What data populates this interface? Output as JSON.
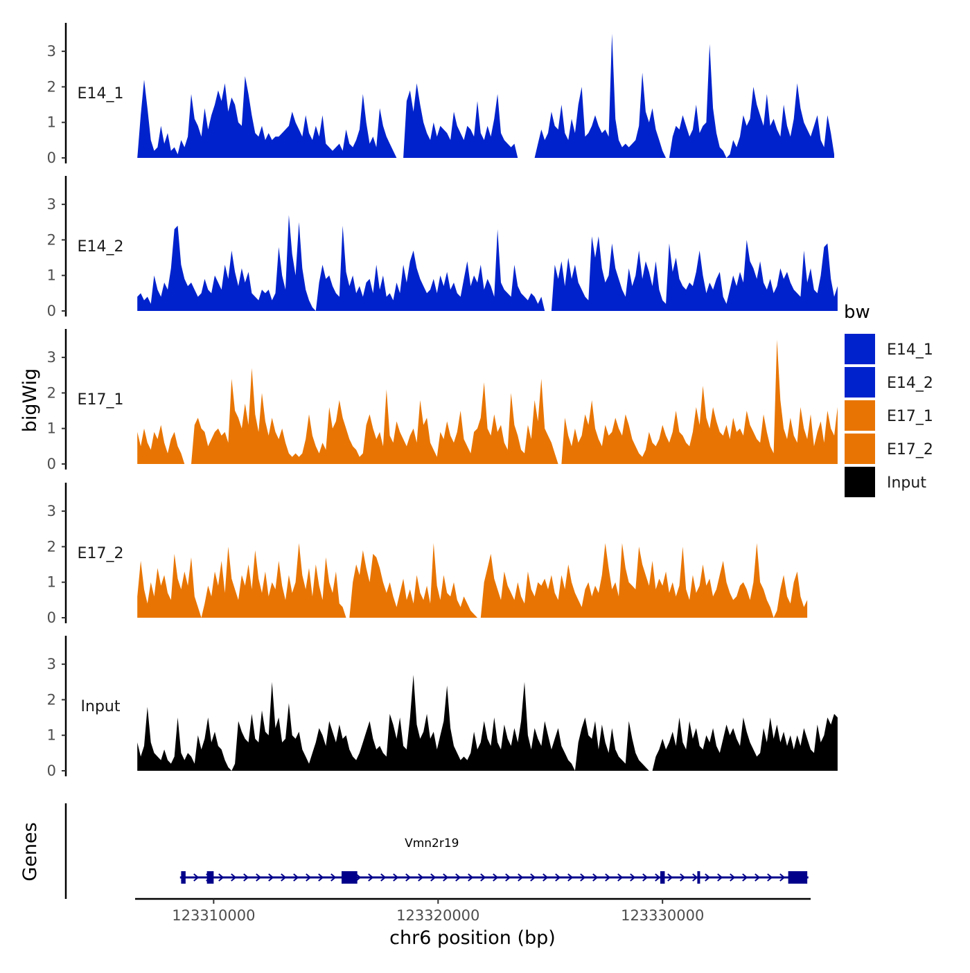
{
  "chart_data": {
    "type": "area",
    "ylabel": "bigWig",
    "xlabel": "chr6 position (bp)",
    "genes_track_label": "Genes",
    "chromosome": "chr6",
    "xlim": [
      123306500,
      123336600
    ],
    "x_ticks": [
      {
        "value": 123310000,
        "label": "123310000"
      },
      {
        "value": 123320000,
        "label": "123320000"
      },
      {
        "value": 123330000,
        "label": "123330000"
      }
    ],
    "ylim": [
      0,
      3.8
    ],
    "y_ticks": [
      {
        "value": 0,
        "label": "0"
      },
      {
        "value": 1,
        "label": "1"
      },
      {
        "value": 2,
        "label": "2"
      },
      {
        "value": 3,
        "label": "3"
      }
    ],
    "legend": {
      "title": "bw",
      "position": "right",
      "entries": [
        {
          "label": "E14_1",
          "color": "#0022CC"
        },
        {
          "label": "E14_2",
          "color": "#0022CC"
        },
        {
          "label": "E17_1",
          "color": "#E87503"
        },
        {
          "label": "E17_2",
          "color": "#E87503"
        },
        {
          "label": "Input",
          "color": "#000000"
        }
      ]
    },
    "series": [
      {
        "name": "E14_1",
        "label": "E14_1",
        "color": "#0022CC",
        "x_start": 123306600,
        "step": 150,
        "values": [
          0.0,
          1.2,
          2.2,
          1.4,
          0.5,
          0.2,
          0.3,
          0.9,
          0.4,
          0.7,
          0.2,
          0.3,
          0.1,
          0.5,
          0.3,
          0.6,
          1.8,
          1.1,
          0.9,
          0.6,
          1.4,
          0.8,
          1.2,
          1.5,
          1.9,
          1.6,
          2.1,
          1.3,
          1.7,
          1.5,
          1.0,
          0.9,
          2.3,
          1.8,
          1.2,
          0.7,
          0.6,
          0.9,
          0.5,
          0.7,
          0.5,
          0.6,
          0.6,
          0.7,
          0.8,
          0.9,
          1.3,
          1.0,
          0.8,
          0.6,
          1.2,
          0.7,
          0.5,
          0.9,
          0.6,
          1.2,
          0.4,
          0.3,
          0.2,
          0.3,
          0.4,
          0.2,
          0.8,
          0.4,
          0.3,
          0.5,
          0.8,
          1.8,
          1.0,
          0.4,
          0.6,
          0.3,
          1.4,
          0.9,
          0.6,
          0.4,
          0.2,
          0.0,
          0.0,
          0.0,
          1.6,
          1.9,
          1.3,
          2.1,
          1.5,
          1.0,
          0.7,
          0.5,
          1.0,
          0.6,
          0.9,
          0.8,
          0.7,
          0.5,
          1.3,
          0.9,
          0.7,
          0.5,
          0.9,
          0.8,
          0.6,
          1.6,
          0.7,
          0.5,
          0.9,
          0.6,
          1.1,
          1.8,
          0.7,
          0.5,
          0.4,
          0.3,
          0.4,
          0.0,
          0.0,
          0.0,
          0.0,
          0.0,
          0.0,
          0.4,
          0.8,
          0.5,
          0.7,
          1.3,
          0.9,
          0.8,
          1.5,
          0.7,
          0.5,
          1.1,
          0.7,
          1.5,
          2.0,
          0.6,
          0.7,
          0.9,
          1.2,
          0.9,
          0.7,
          0.8,
          0.6,
          3.5,
          1.1,
          0.5,
          0.3,
          0.4,
          0.3,
          0.4,
          0.5,
          0.9,
          2.4,
          1.3,
          1.0,
          1.4,
          0.8,
          0.5,
          0.2,
          0.0,
          0.0,
          0.6,
          0.9,
          0.8,
          1.2,
          0.9,
          0.6,
          0.8,
          1.5,
          0.7,
          0.9,
          1.0,
          3.2,
          1.4,
          0.7,
          0.3,
          0.2,
          0.0,
          0.1,
          0.5,
          0.3,
          0.6,
          1.2,
          0.9,
          1.1,
          2.0,
          1.5,
          1.2,
          0.9,
          1.8,
          0.9,
          1.1,
          0.8,
          0.6,
          1.5,
          0.9,
          0.6,
          1.1,
          2.1,
          1.4,
          1.0,
          0.8,
          0.6,
          0.9,
          1.2,
          0.5,
          0.3,
          1.2,
          0.7,
          0.1
        ]
      },
      {
        "name": "E14_2",
        "label": "E14_2",
        "color": "#0022CC",
        "x_start": 123306600,
        "step": 150,
        "values": [
          0.4,
          0.5,
          0.3,
          0.4,
          0.2,
          1.0,
          0.6,
          0.4,
          0.8,
          0.6,
          1.2,
          2.3,
          2.4,
          1.3,
          0.9,
          0.7,
          0.8,
          0.6,
          0.4,
          0.5,
          0.9,
          0.6,
          0.5,
          1.0,
          0.8,
          0.6,
          1.3,
          0.9,
          1.7,
          1.1,
          0.7,
          1.2,
          0.8,
          1.1,
          0.5,
          0.4,
          0.3,
          0.6,
          0.5,
          0.6,
          0.3,
          0.5,
          1.8,
          1.0,
          0.6,
          2.7,
          1.6,
          1.0,
          2.5,
          1.2,
          0.6,
          0.3,
          0.1,
          0.0,
          0.8,
          1.3,
          0.9,
          1.0,
          0.7,
          0.5,
          0.4,
          2.4,
          1.1,
          0.7,
          1.0,
          0.5,
          0.7,
          0.4,
          0.8,
          0.9,
          0.5,
          1.3,
          0.6,
          1.0,
          0.4,
          0.5,
          0.3,
          0.8,
          0.5,
          1.3,
          0.8,
          1.4,
          1.7,
          1.2,
          0.9,
          0.7,
          0.5,
          0.6,
          0.9,
          0.5,
          1.0,
          0.7,
          1.1,
          0.6,
          0.8,
          0.5,
          0.4,
          0.9,
          1.4,
          0.7,
          1.0,
          0.8,
          1.3,
          0.6,
          0.9,
          0.7,
          0.4,
          2.3,
          0.8,
          0.6,
          0.5,
          0.4,
          1.3,
          0.7,
          0.5,
          0.4,
          0.3,
          0.5,
          0.4,
          0.2,
          0.4,
          0.0,
          0.0,
          0.0,
          1.3,
          0.9,
          1.4,
          0.7,
          1.5,
          0.9,
          1.3,
          0.8,
          0.6,
          0.4,
          0.3,
          2.1,
          1.5,
          2.1,
          1.2,
          0.8,
          1.0,
          1.9,
          1.2,
          0.9,
          0.6,
          0.4,
          1.2,
          0.7,
          1.0,
          1.7,
          0.9,
          1.4,
          1.1,
          0.7,
          1.4,
          0.6,
          0.3,
          0.2,
          1.9,
          1.1,
          1.5,
          0.9,
          0.7,
          0.6,
          0.8,
          0.7,
          1.1,
          1.7,
          1.0,
          0.5,
          0.8,
          0.6,
          0.9,
          1.1,
          0.4,
          0.2,
          0.6,
          1.0,
          0.7,
          1.1,
          0.8,
          2.0,
          1.4,
          1.2,
          0.9,
          1.4,
          0.8,
          0.6,
          0.9,
          0.5,
          0.7,
          1.2,
          0.9,
          1.1,
          0.8,
          0.6,
          0.5,
          0.4,
          1.7,
          0.8,
          1.2,
          0.6,
          0.5,
          1.0,
          1.8,
          1.9,
          0.9,
          0.4,
          0.7
        ]
      },
      {
        "name": "E17_1",
        "label": "E17_1",
        "color": "#E87503",
        "x_start": 123306600,
        "step": 150,
        "values": [
          0.9,
          0.5,
          1.0,
          0.6,
          0.4,
          0.9,
          0.7,
          1.1,
          0.6,
          0.3,
          0.7,
          0.9,
          0.5,
          0.3,
          0.0,
          0.0,
          0.0,
          1.1,
          1.3,
          1.0,
          0.9,
          0.5,
          0.7,
          0.9,
          1.0,
          0.8,
          0.9,
          0.6,
          2.4,
          1.5,
          1.3,
          1.0,
          1.7,
          1.1,
          2.7,
          1.4,
          0.9,
          2.0,
          1.2,
          0.8,
          1.3,
          0.9,
          0.7,
          1.0,
          0.6,
          0.3,
          0.2,
          0.3,
          0.2,
          0.3,
          0.7,
          1.4,
          0.8,
          0.5,
          0.3,
          0.6,
          0.4,
          1.6,
          1.0,
          1.2,
          1.8,
          1.3,
          1.0,
          0.7,
          0.5,
          0.4,
          0.2,
          0.3,
          1.1,
          1.4,
          1.0,
          0.7,
          0.9,
          0.5,
          2.1,
          0.8,
          0.6,
          1.2,
          0.9,
          0.7,
          0.5,
          0.8,
          1.0,
          0.6,
          1.8,
          1.1,
          1.3,
          0.6,
          0.4,
          0.2,
          0.9,
          0.7,
          1.2,
          0.8,
          0.6,
          0.9,
          1.5,
          0.7,
          0.5,
          0.3,
          0.9,
          1.0,
          1.3,
          2.3,
          1.0,
          0.8,
          1.4,
          0.9,
          1.1,
          0.6,
          0.4,
          2.0,
          1.1,
          0.8,
          0.4,
          0.3,
          1.1,
          0.7,
          1.8,
          1.2,
          2.4,
          1.0,
          0.8,
          0.6,
          0.3,
          0.0,
          0.0,
          1.3,
          0.8,
          0.5,
          1.0,
          0.6,
          0.8,
          1.4,
          1.1,
          1.8,
          1.0,
          0.7,
          0.5,
          1.1,
          0.8,
          0.9,
          1.3,
          1.0,
          0.8,
          1.4,
          1.1,
          0.7,
          0.5,
          0.3,
          0.2,
          0.4,
          0.9,
          0.6,
          0.5,
          0.7,
          1.1,
          0.8,
          0.6,
          0.9,
          1.5,
          0.9,
          0.8,
          0.6,
          0.5,
          0.9,
          1.6,
          1.1,
          2.2,
          1.3,
          1.0,
          1.6,
          1.2,
          0.9,
          0.8,
          1.1,
          0.7,
          1.3,
          0.9,
          1.0,
          0.8,
          1.5,
          1.1,
          0.9,
          0.7,
          0.6,
          1.4,
          0.9,
          0.5,
          0.3,
          3.5,
          1.8,
          1.0,
          0.7,
          1.3,
          0.8,
          0.6,
          1.6,
          1.0,
          0.7,
          1.4,
          0.5,
          0.9,
          1.2,
          0.6,
          1.5,
          1.0,
          0.8,
          1.6
        ]
      },
      {
        "name": "E17_2",
        "label": "E17_2",
        "color": "#E87503",
        "x_start": 123306600,
        "step": 150,
        "values": [
          0.6,
          1.6,
          0.8,
          0.4,
          1.0,
          0.6,
          1.4,
          0.9,
          1.2,
          0.7,
          0.5,
          1.8,
          1.1,
          0.8,
          1.3,
          0.9,
          1.7,
          0.6,
          0.3,
          0.0,
          0.4,
          0.9,
          0.6,
          1.3,
          0.9,
          1.6,
          0.7,
          2.0,
          1.1,
          0.8,
          0.5,
          1.2,
          0.9,
          1.5,
          0.8,
          1.9,
          1.1,
          0.7,
          1.3,
          0.6,
          1.0,
          0.8,
          1.6,
          0.9,
          0.5,
          1.2,
          0.7,
          1.0,
          2.1,
          1.2,
          0.8,
          1.4,
          0.6,
          1.5,
          0.9,
          0.5,
          1.7,
          1.0,
          0.7,
          1.3,
          0.4,
          0.3,
          0.0,
          0.0,
          1.0,
          1.5,
          1.2,
          1.9,
          1.4,
          1.0,
          1.8,
          1.7,
          1.4,
          1.0,
          0.7,
          1.0,
          0.6,
          0.3,
          0.7,
          1.1,
          0.5,
          0.8,
          0.4,
          1.2,
          0.7,
          0.5,
          0.9,
          0.4,
          2.1,
          0.9,
          0.5,
          1.2,
          0.7,
          0.6,
          1.0,
          0.5,
          0.3,
          0.6,
          0.4,
          0.2,
          0.1,
          0.0,
          0.0,
          1.0,
          1.4,
          1.8,
          1.1,
          0.8,
          0.5,
          1.3,
          0.9,
          0.7,
          0.5,
          1.0,
          0.6,
          0.4,
          1.3,
          0.8,
          0.6,
          1.0,
          0.9,
          1.1,
          0.8,
          1.2,
          0.7,
          0.5,
          1.2,
          0.8,
          1.5,
          1.0,
          0.7,
          0.5,
          0.3,
          0.8,
          1.0,
          0.6,
          0.9,
          0.7,
          1.2,
          2.1,
          1.4,
          0.8,
          1.0,
          0.6,
          2.1,
          1.4,
          1.0,
          0.9,
          0.8,
          2.0,
          1.5,
          1.2,
          0.9,
          1.6,
          0.8,
          1.1,
          0.9,
          1.3,
          0.7,
          1.0,
          0.6,
          0.9,
          2.0,
          0.8,
          0.5,
          1.2,
          0.7,
          0.9,
          1.5,
          0.9,
          1.1,
          0.6,
          0.8,
          1.2,
          1.6,
          1.0,
          0.7,
          0.5,
          0.6,
          0.9,
          1.0,
          0.8,
          0.5,
          1.0,
          2.1,
          1.0,
          0.8,
          0.5,
          0.3,
          0.0,
          0.2,
          0.8,
          1.2,
          0.6,
          0.4,
          1.0,
          1.3,
          0.6,
          0.3,
          0.5
        ]
      },
      {
        "name": "Input",
        "label": "Input",
        "color": "#000000",
        "x_start": 123306600,
        "step": 150,
        "values": [
          0.8,
          0.4,
          0.7,
          1.8,
          0.8,
          0.5,
          0.4,
          0.3,
          0.6,
          0.3,
          0.2,
          0.4,
          1.5,
          0.5,
          0.3,
          0.5,
          0.4,
          0.2,
          1.0,
          0.6,
          0.9,
          1.5,
          0.8,
          1.1,
          0.7,
          0.6,
          0.3,
          0.1,
          0.0,
          0.2,
          1.4,
          1.1,
          0.9,
          0.8,
          1.6,
          0.9,
          0.8,
          1.7,
          1.1,
          1.0,
          2.5,
          1.2,
          1.5,
          0.8,
          0.9,
          1.9,
          1.0,
          0.9,
          1.1,
          0.6,
          0.4,
          0.2,
          0.5,
          0.8,
          1.2,
          1.0,
          0.7,
          1.4,
          1.1,
          0.8,
          1.3,
          0.9,
          1.0,
          0.6,
          0.4,
          0.3,
          0.5,
          0.8,
          1.1,
          1.4,
          0.9,
          0.6,
          0.7,
          0.5,
          0.4,
          1.6,
          1.3,
          0.9,
          1.5,
          0.7,
          0.6,
          1.5,
          2.7,
          1.3,
          0.9,
          1.1,
          1.6,
          0.9,
          1.1,
          0.6,
          1.0,
          1.4,
          2.4,
          1.2,
          0.7,
          0.5,
          0.3,
          0.4,
          0.3,
          0.5,
          1.1,
          0.6,
          0.8,
          1.4,
          0.9,
          0.7,
          1.5,
          0.8,
          0.6,
          1.3,
          0.9,
          0.7,
          1.2,
          0.8,
          1.4,
          2.5,
          1.0,
          0.6,
          1.2,
          0.9,
          0.7,
          1.4,
          1.0,
          0.6,
          0.9,
          1.2,
          0.7,
          0.5,
          0.3,
          0.2,
          0.0,
          0.8,
          1.2,
          1.5,
          1.0,
          0.9,
          1.4,
          0.6,
          1.3,
          0.8,
          0.5,
          1.2,
          0.6,
          0.4,
          0.3,
          0.2,
          1.4,
          0.9,
          0.5,
          0.3,
          0.2,
          0.1,
          0.0,
          0.0,
          0.4,
          0.6,
          0.9,
          0.6,
          0.8,
          1.1,
          0.7,
          1.5,
          0.8,
          0.6,
          1.4,
          0.9,
          1.2,
          0.7,
          0.6,
          1.0,
          0.8,
          1.2,
          0.7,
          0.5,
          0.9,
          1.3,
          1.0,
          1.2,
          0.9,
          0.7,
          1.5,
          1.1,
          0.8,
          0.6,
          0.4,
          0.5,
          1.2,
          0.8,
          1.5,
          0.9,
          1.3,
          0.8,
          1.1,
          0.7,
          1.0,
          0.6,
          1.0,
          0.7,
          1.2,
          0.9,
          0.6,
          0.5,
          1.3,
          0.8,
          1.0,
          1.5,
          1.3,
          1.6,
          1.5
        ]
      }
    ],
    "genes": [
      {
        "name": "Vmn2r19",
        "strand": "+",
        "start": 123308500,
        "end": 123336500,
        "exons": [
          {
            "start": 123308550,
            "end": 123308750
          },
          {
            "start": 123309700,
            "end": 123310000
          },
          {
            "start": 123315700,
            "end": 123316400
          },
          {
            "start": 123329900,
            "end": 123330100
          },
          {
            "start": 123331550,
            "end": 123331650
          },
          {
            "start": 123335600,
            "end": 123336450
          }
        ]
      }
    ]
  }
}
